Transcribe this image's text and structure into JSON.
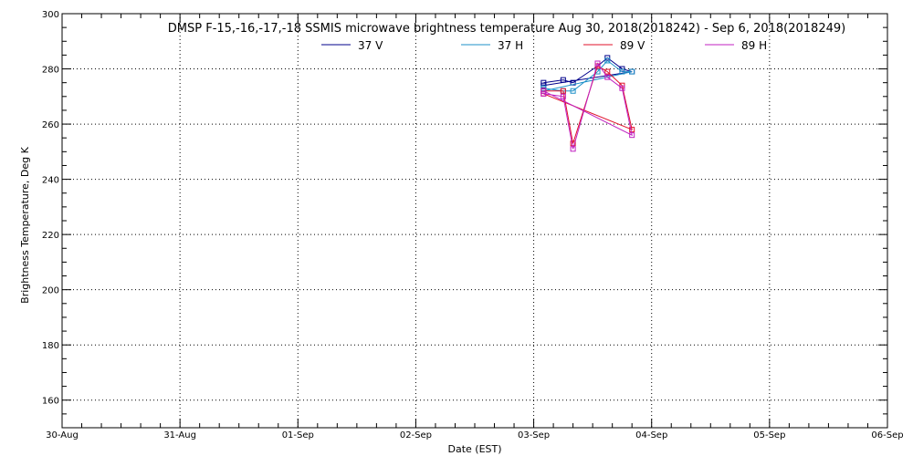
{
  "chart_data": {
    "type": "line",
    "title": "DMSP F-15,-16,-17,-18 SSMIS microwave brightness temperature Aug 30, 2018(2018242) - Sep  6, 2018(2018249)",
    "xlabel": "Date (EST)",
    "ylabel": "Brightness Temperature, Deg K",
    "x_tick_labels": [
      "30-Aug",
      "31-Aug",
      "01-Sep",
      "02-Sep",
      "03-Sep",
      "04-Sep",
      "05-Sep",
      "06-Sep"
    ],
    "xlim": [
      "2018-08-30T00:00",
      "2018-09-06T00:00"
    ],
    "ylim": [
      150,
      300
    ],
    "y_ticks": [
      160,
      180,
      200,
      220,
      240,
      260,
      280,
      300
    ],
    "grid": true,
    "legend_position": "top",
    "series": [
      {
        "name": "37 V",
        "color": "#00008b",
        "points": [
          [
            "2018-09-03T02:00",
            275
          ],
          [
            "2018-09-03T06:00",
            276
          ],
          [
            "2018-09-03T08:00",
            275
          ],
          [
            "2018-09-03T13:00",
            281
          ],
          [
            "2018-09-03T15:00",
            284
          ],
          [
            "2018-09-03T18:00",
            280
          ],
          [
            "2018-09-03T20:00",
            279
          ],
          [
            "2018-09-03T02:00",
            274
          ]
        ]
      },
      {
        "name": "37 H",
        "color": "#1e90c8",
        "points": [
          [
            "2018-09-03T02:00",
            273
          ],
          [
            "2018-09-03T06:00",
            272
          ],
          [
            "2018-09-03T08:00",
            272
          ],
          [
            "2018-09-03T13:00",
            279
          ],
          [
            "2018-09-03T15:00",
            283
          ],
          [
            "2018-09-03T18:00",
            279
          ],
          [
            "2018-09-03T20:00",
            279
          ],
          [
            "2018-09-03T02:00",
            272
          ]
        ]
      },
      {
        "name": "89 V",
        "color": "#e0102a",
        "points": [
          [
            "2018-09-03T02:00",
            272
          ],
          [
            "2018-09-03T06:00",
            272
          ],
          [
            "2018-09-03T08:00",
            253
          ],
          [
            "2018-09-03T13:00",
            281
          ],
          [
            "2018-09-03T15:00",
            279
          ],
          [
            "2018-09-03T18:00",
            274
          ],
          [
            "2018-09-03T20:00",
            258
          ],
          [
            "2018-09-03T02:00",
            271
          ]
        ]
      },
      {
        "name": "89 H",
        "color": "#c020c0",
        "points": [
          [
            "2018-09-03T02:00",
            271
          ],
          [
            "2018-09-03T06:00",
            270
          ],
          [
            "2018-09-03T08:00",
            251
          ],
          [
            "2018-09-03T13:00",
            282
          ],
          [
            "2018-09-03T15:00",
            277
          ],
          [
            "2018-09-03T18:00",
            273
          ],
          [
            "2018-09-03T20:00",
            256
          ],
          [
            "2018-09-03T02:00",
            272
          ]
        ]
      }
    ]
  }
}
